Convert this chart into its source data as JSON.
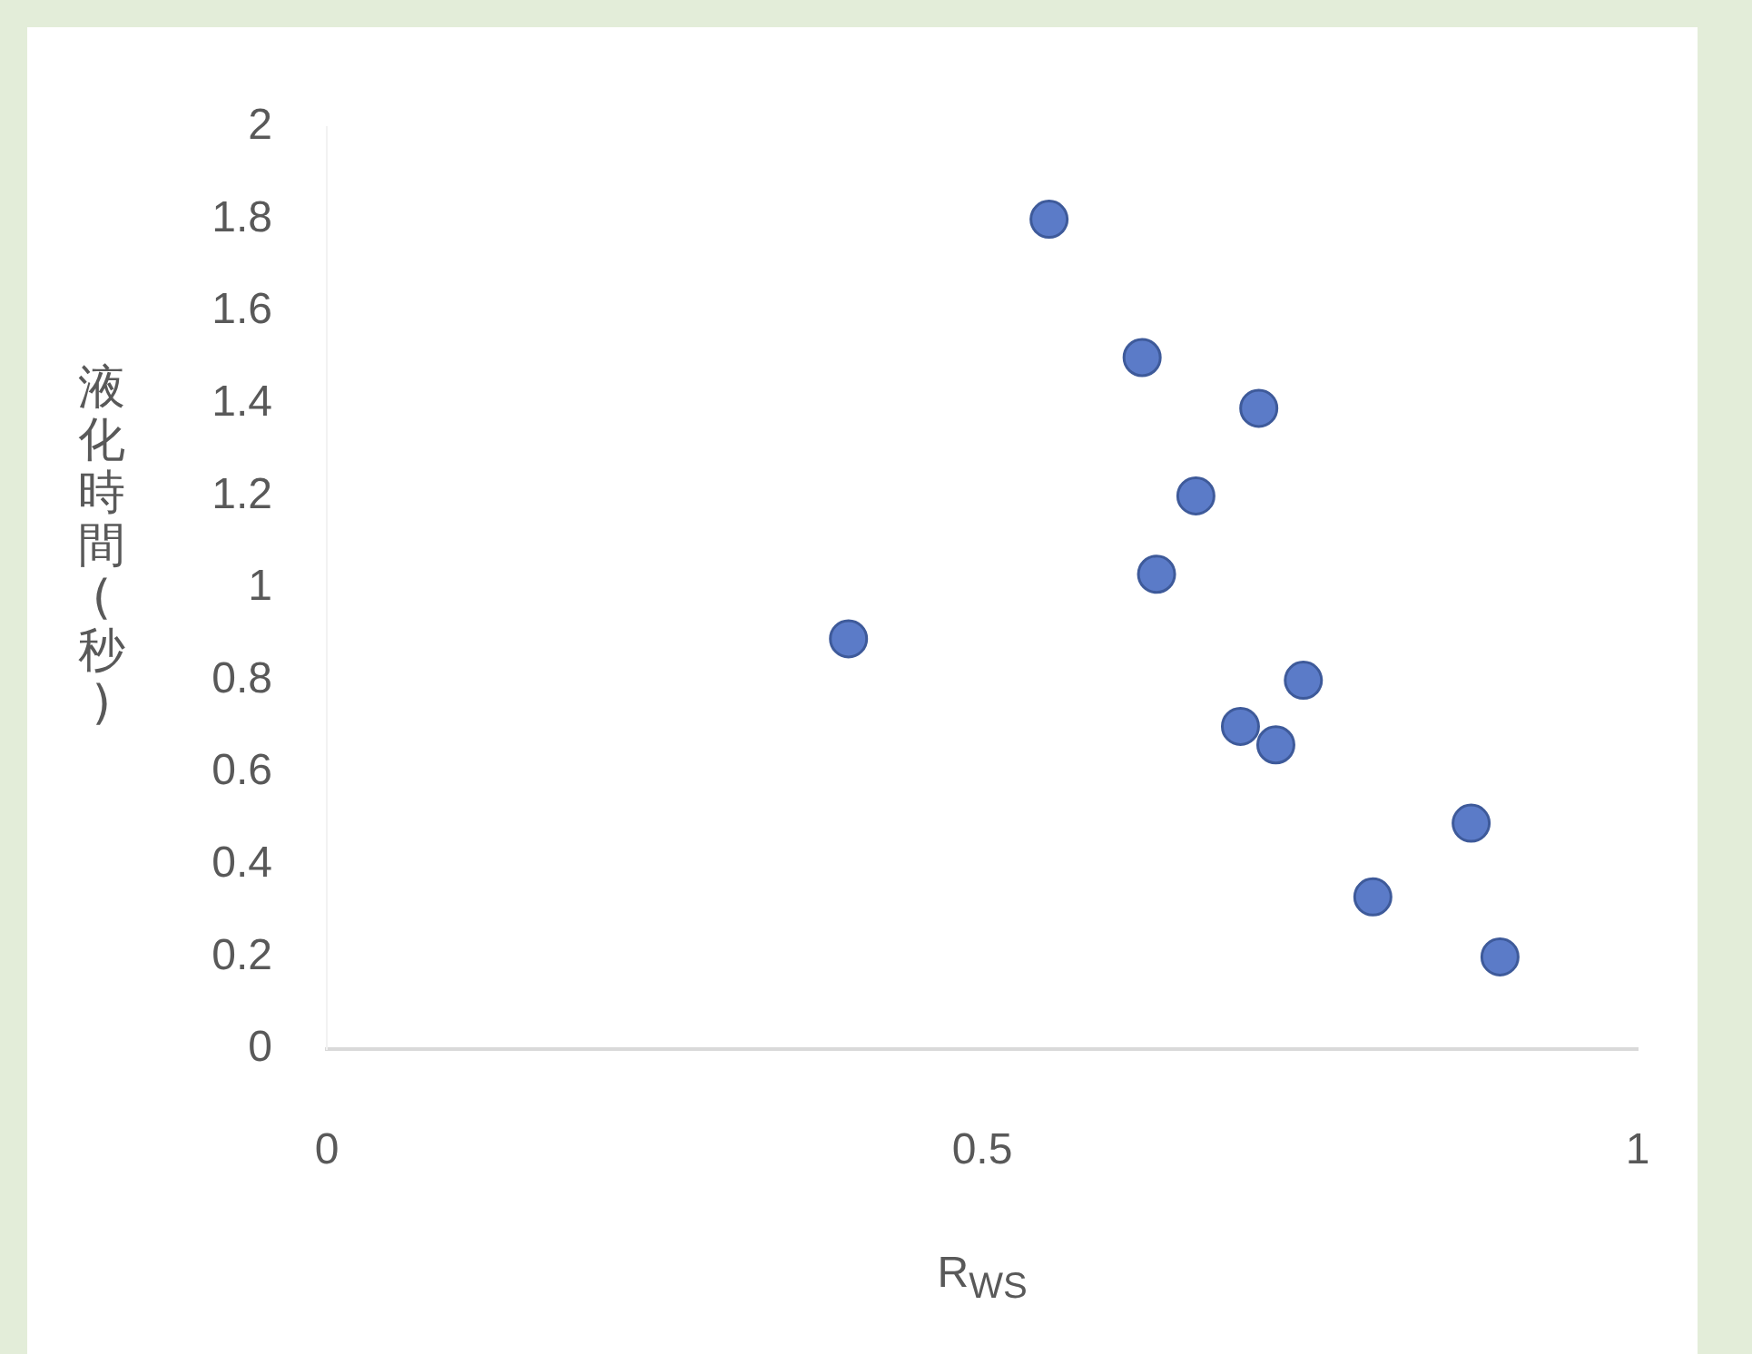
{
  "chart_data": {
    "type": "scatter",
    "xlabel": "R$_{WS}$",
    "ylabel": "液化時間(秒)",
    "x": [
      0.551,
      0.622,
      0.711,
      0.663,
      0.633,
      0.398,
      0.745,
      0.697,
      0.724,
      0.873,
      0.798,
      0.895
    ],
    "series": [
      {
        "color": "#5b7bc8",
        "values": [
          1.8,
          1.5,
          1.39,
          1.2,
          1.03,
          0.89,
          0.8,
          0.7,
          0.66,
          0.49,
          0.33,
          0.2
        ]
      }
    ],
    "xlim": [
      0,
      1
    ],
    "xticks": [
      0,
      0.5,
      1
    ],
    "ylim": [
      0,
      2
    ],
    "yticks": [
      0,
      0.2,
      0.4,
      0.6,
      0.8,
      1,
      1.2,
      1.4,
      1.6,
      1.8,
      2
    ],
    "grid": false,
    "legend": false,
    "marker": "circle"
  }
}
